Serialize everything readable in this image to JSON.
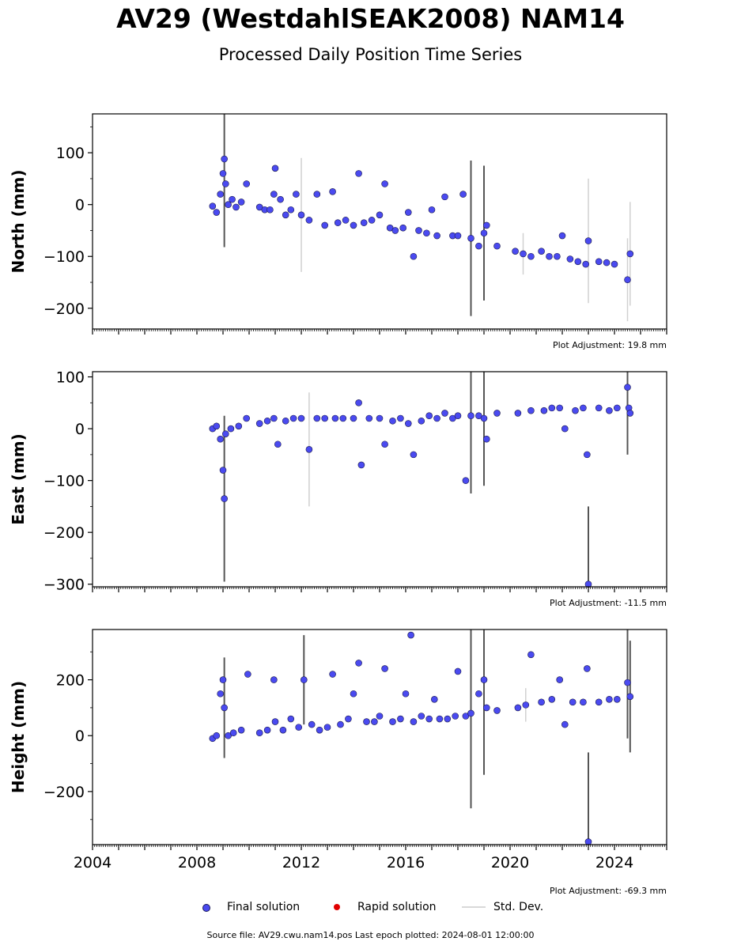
{
  "title": "AV29 (WestdahlSEAK2008) NAM14",
  "subtitle": "Processed Daily Position Time Series",
  "legend": {
    "final_label": "Final solution",
    "rapid_label": "Rapid solution",
    "std_label": "Std. Dev.",
    "final_color": "#4a4af0",
    "rapid_color": "#e00000",
    "std_color": "#d9d9d9"
  },
  "footer": "Source file: AV29.cwu.nam14.pos  Last epoch plotted: 2024-08-01 12:00:00",
  "chart_data": [
    {
      "type": "scatter",
      "ylabel": "North (mm)",
      "xlim": [
        2004.0,
        2026.0
      ],
      "ylim": [
        -240,
        175
      ],
      "yticks": [
        -200,
        -100,
        0,
        100
      ],
      "xticks": [
        2004,
        2008,
        2012,
        2016,
        2020,
        2024
      ],
      "xtick_labels": [],
      "adjustment": "Plot Adjustment: 19.8 mm",
      "series": [
        {
          "x": [
            2008.6,
            2008.75,
            2008.9,
            2009.0,
            2009.05,
            2009.1,
            2009.2,
            2009.35,
            2009.5,
            2009.7,
            2009.9,
            2010.4,
            2010.6,
            2010.8,
            2010.95,
            2011.0,
            2011.2,
            2011.4,
            2011.6,
            2011.8,
            2012.0,
            2012.3,
            2012.6,
            2012.9,
            2013.2,
            2013.4,
            2013.7,
            2014.0,
            2014.2,
            2014.4,
            2014.7,
            2015.0,
            2015.2,
            2015.4,
            2015.6,
            2015.9,
            2016.1,
            2016.3,
            2016.5,
            2016.8,
            2017.0,
            2017.2,
            2017.5,
            2017.8,
            2018.0,
            2018.2,
            2018.5,
            2018.8,
            2019.0,
            2019.1,
            2019.5,
            2020.2,
            2020.5,
            2020.8,
            2021.2,
            2021.5,
            2021.8,
            2022.0,
            2022.3,
            2022.6,
            2022.9,
            2023.0,
            2023.4,
            2023.7,
            2024.0,
            2024.5,
            2024.6
          ],
          "y": [
            -3,
            -15,
            20,
            60,
            88,
            40,
            0,
            10,
            -5,
            5,
            40,
            -5,
            -10,
            -10,
            20,
            70,
            10,
            -20,
            -10,
            20,
            -20,
            -30,
            20,
            -40,
            25,
            -35,
            -30,
            -40,
            60,
            -35,
            -30,
            -20,
            40,
            -45,
            -50,
            -45,
            -15,
            -100,
            -50,
            -55,
            -10,
            -60,
            15,
            -60,
            -60,
            20,
            -65,
            -80,
            -55,
            -40,
            -80,
            -90,
            -95,
            -100,
            -90,
            -100,
            -100,
            -60,
            -105,
            -110,
            -115,
            -70,
            -110,
            -112,
            -115,
            -145,
            -95
          ],
          "err": [
            5,
            8,
            10,
            10,
            170,
            10,
            8,
            8,
            6,
            6,
            8,
            6,
            6,
            6,
            8,
            10,
            8,
            8,
            8,
            8,
            110,
            8,
            8,
            8,
            8,
            8,
            8,
            8,
            8,
            8,
            8,
            8,
            8,
            8,
            8,
            8,
            8,
            8,
            8,
            8,
            8,
            8,
            8,
            8,
            8,
            8,
            150,
            8,
            130,
            8,
            8,
            8,
            40,
            8,
            8,
            8,
            8,
            8,
            8,
            8,
            8,
            120,
            8,
            8,
            8,
            80,
            100
          ]
        }
      ]
    },
    {
      "type": "scatter",
      "ylabel": "East (mm)",
      "xlim": [
        2004.0,
        2026.0
      ],
      "ylim": [
        -305,
        110
      ],
      "yticks": [
        -300,
        -200,
        -100,
        0,
        100
      ],
      "xticks": [
        2004,
        2008,
        2012,
        2016,
        2020,
        2024
      ],
      "xtick_labels": [],
      "adjustment": "Plot Adjustment: -11.5 mm",
      "series": [
        {
          "x": [
            2008.6,
            2008.75,
            2008.9,
            2009.0,
            2009.05,
            2009.1,
            2009.3,
            2009.6,
            2009.9,
            2010.4,
            2010.7,
            2010.95,
            2011.1,
            2011.4,
            2011.7,
            2012.0,
            2012.3,
            2012.6,
            2012.9,
            2013.3,
            2013.6,
            2014.0,
            2014.2,
            2014.3,
            2014.6,
            2015.0,
            2015.2,
            2015.5,
            2015.8,
            2016.1,
            2016.3,
            2016.6,
            2016.9,
            2017.2,
            2017.5,
            2017.8,
            2018.0,
            2018.3,
            2018.5,
            2018.8,
            2019.0,
            2019.1,
            2019.5,
            2020.3,
            2020.8,
            2021.3,
            2021.6,
            2021.9,
            2022.1,
            2022.5,
            2022.8,
            2022.95,
            2023.0,
            2023.4,
            2023.8,
            2024.1,
            2024.5,
            2024.55,
            2024.6
          ],
          "y": [
            0,
            5,
            -20,
            -80,
            -135,
            -10,
            0,
            5,
            20,
            10,
            15,
            20,
            -30,
            15,
            20,
            20,
            -40,
            20,
            20,
            20,
            20,
            20,
            50,
            -70,
            20,
            20,
            -30,
            15,
            20,
            10,
            -50,
            15,
            25,
            20,
            30,
            20,
            25,
            -100,
            25,
            25,
            20,
            -20,
            30,
            30,
            35,
            35,
            40,
            40,
            0,
            35,
            40,
            -50,
            -300,
            40,
            35,
            40,
            80,
            40,
            30
          ],
          "err": [
            5,
            5,
            8,
            10,
            160,
            8,
            6,
            6,
            8,
            6,
            6,
            8,
            8,
            6,
            6,
            8,
            110,
            8,
            8,
            8,
            8,
            8,
            8,
            8,
            8,
            8,
            8,
            8,
            8,
            8,
            8,
            8,
            8,
            8,
            8,
            8,
            8,
            8,
            150,
            8,
            130,
            8,
            8,
            8,
            8,
            8,
            8,
            8,
            8,
            8,
            8,
            8,
            150,
            8,
            8,
            8,
            130,
            8,
            8
          ]
        }
      ]
    },
    {
      "type": "scatter",
      "ylabel": "Height (mm)",
      "xlim": [
        2004.0,
        2026.0
      ],
      "ylim": [
        -390,
        380
      ],
      "yticks": [
        -200,
        0,
        200
      ],
      "xticks": [
        2004,
        2008,
        2012,
        2016,
        2020,
        2024
      ],
      "xtick_labels": [
        "2004",
        "2008",
        "2012",
        "2016",
        "2020",
        "2024"
      ],
      "adjustment": "Plot Adjustment: -69.3 mm",
      "series": [
        {
          "x": [
            2008.6,
            2008.75,
            2008.9,
            2009.0,
            2009.05,
            2009.2,
            2009.4,
            2009.7,
            2009.95,
            2010.4,
            2010.7,
            2010.95,
            2011.0,
            2011.3,
            2011.6,
            2011.9,
            2012.1,
            2012.4,
            2012.7,
            2013.0,
            2013.2,
            2013.5,
            2013.8,
            2014.0,
            2014.2,
            2014.5,
            2014.8,
            2015.0,
            2015.2,
            2015.5,
            2015.8,
            2016.0,
            2016.2,
            2016.3,
            2016.6,
            2016.9,
            2017.1,
            2017.3,
            2017.6,
            2017.9,
            2018.0,
            2018.3,
            2018.5,
            2018.8,
            2019.0,
            2019.1,
            2019.5,
            2020.3,
            2020.6,
            2020.8,
            2021.2,
            2021.6,
            2021.9,
            2022.1,
            2022.4,
            2022.8,
            2022.95,
            2023.0,
            2023.4,
            2023.8,
            2024.1,
            2024.5,
            2024.6
          ],
          "y": [
            -10,
            0,
            150,
            200,
            100,
            0,
            10,
            20,
            220,
            10,
            20,
            200,
            50,
            20,
            60,
            30,
            200,
            40,
            20,
            30,
            220,
            40,
            60,
            150,
            260,
            50,
            50,
            70,
            240,
            50,
            60,
            150,
            360,
            50,
            70,
            60,
            130,
            60,
            60,
            70,
            230,
            70,
            80,
            150,
            200,
            100,
            90,
            100,
            110,
            290,
            120,
            130,
            200,
            40,
            120,
            120,
            240,
            -380,
            120,
            130,
            130,
            190,
            140
          ],
          "err": [
            5,
            5,
            8,
            8,
            180,
            8,
            6,
            6,
            8,
            6,
            6,
            8,
            8,
            8,
            8,
            8,
            160,
            8,
            8,
            8,
            8,
            8,
            8,
            8,
            8,
            8,
            8,
            8,
            8,
            8,
            8,
            8,
            8,
            8,
            8,
            8,
            8,
            8,
            8,
            8,
            8,
            8,
            340,
            8,
            340,
            8,
            8,
            8,
            60,
            8,
            8,
            8,
            8,
            8,
            8,
            8,
            8,
            320,
            8,
            8,
            8,
            200,
            200
          ]
        }
      ]
    }
  ]
}
